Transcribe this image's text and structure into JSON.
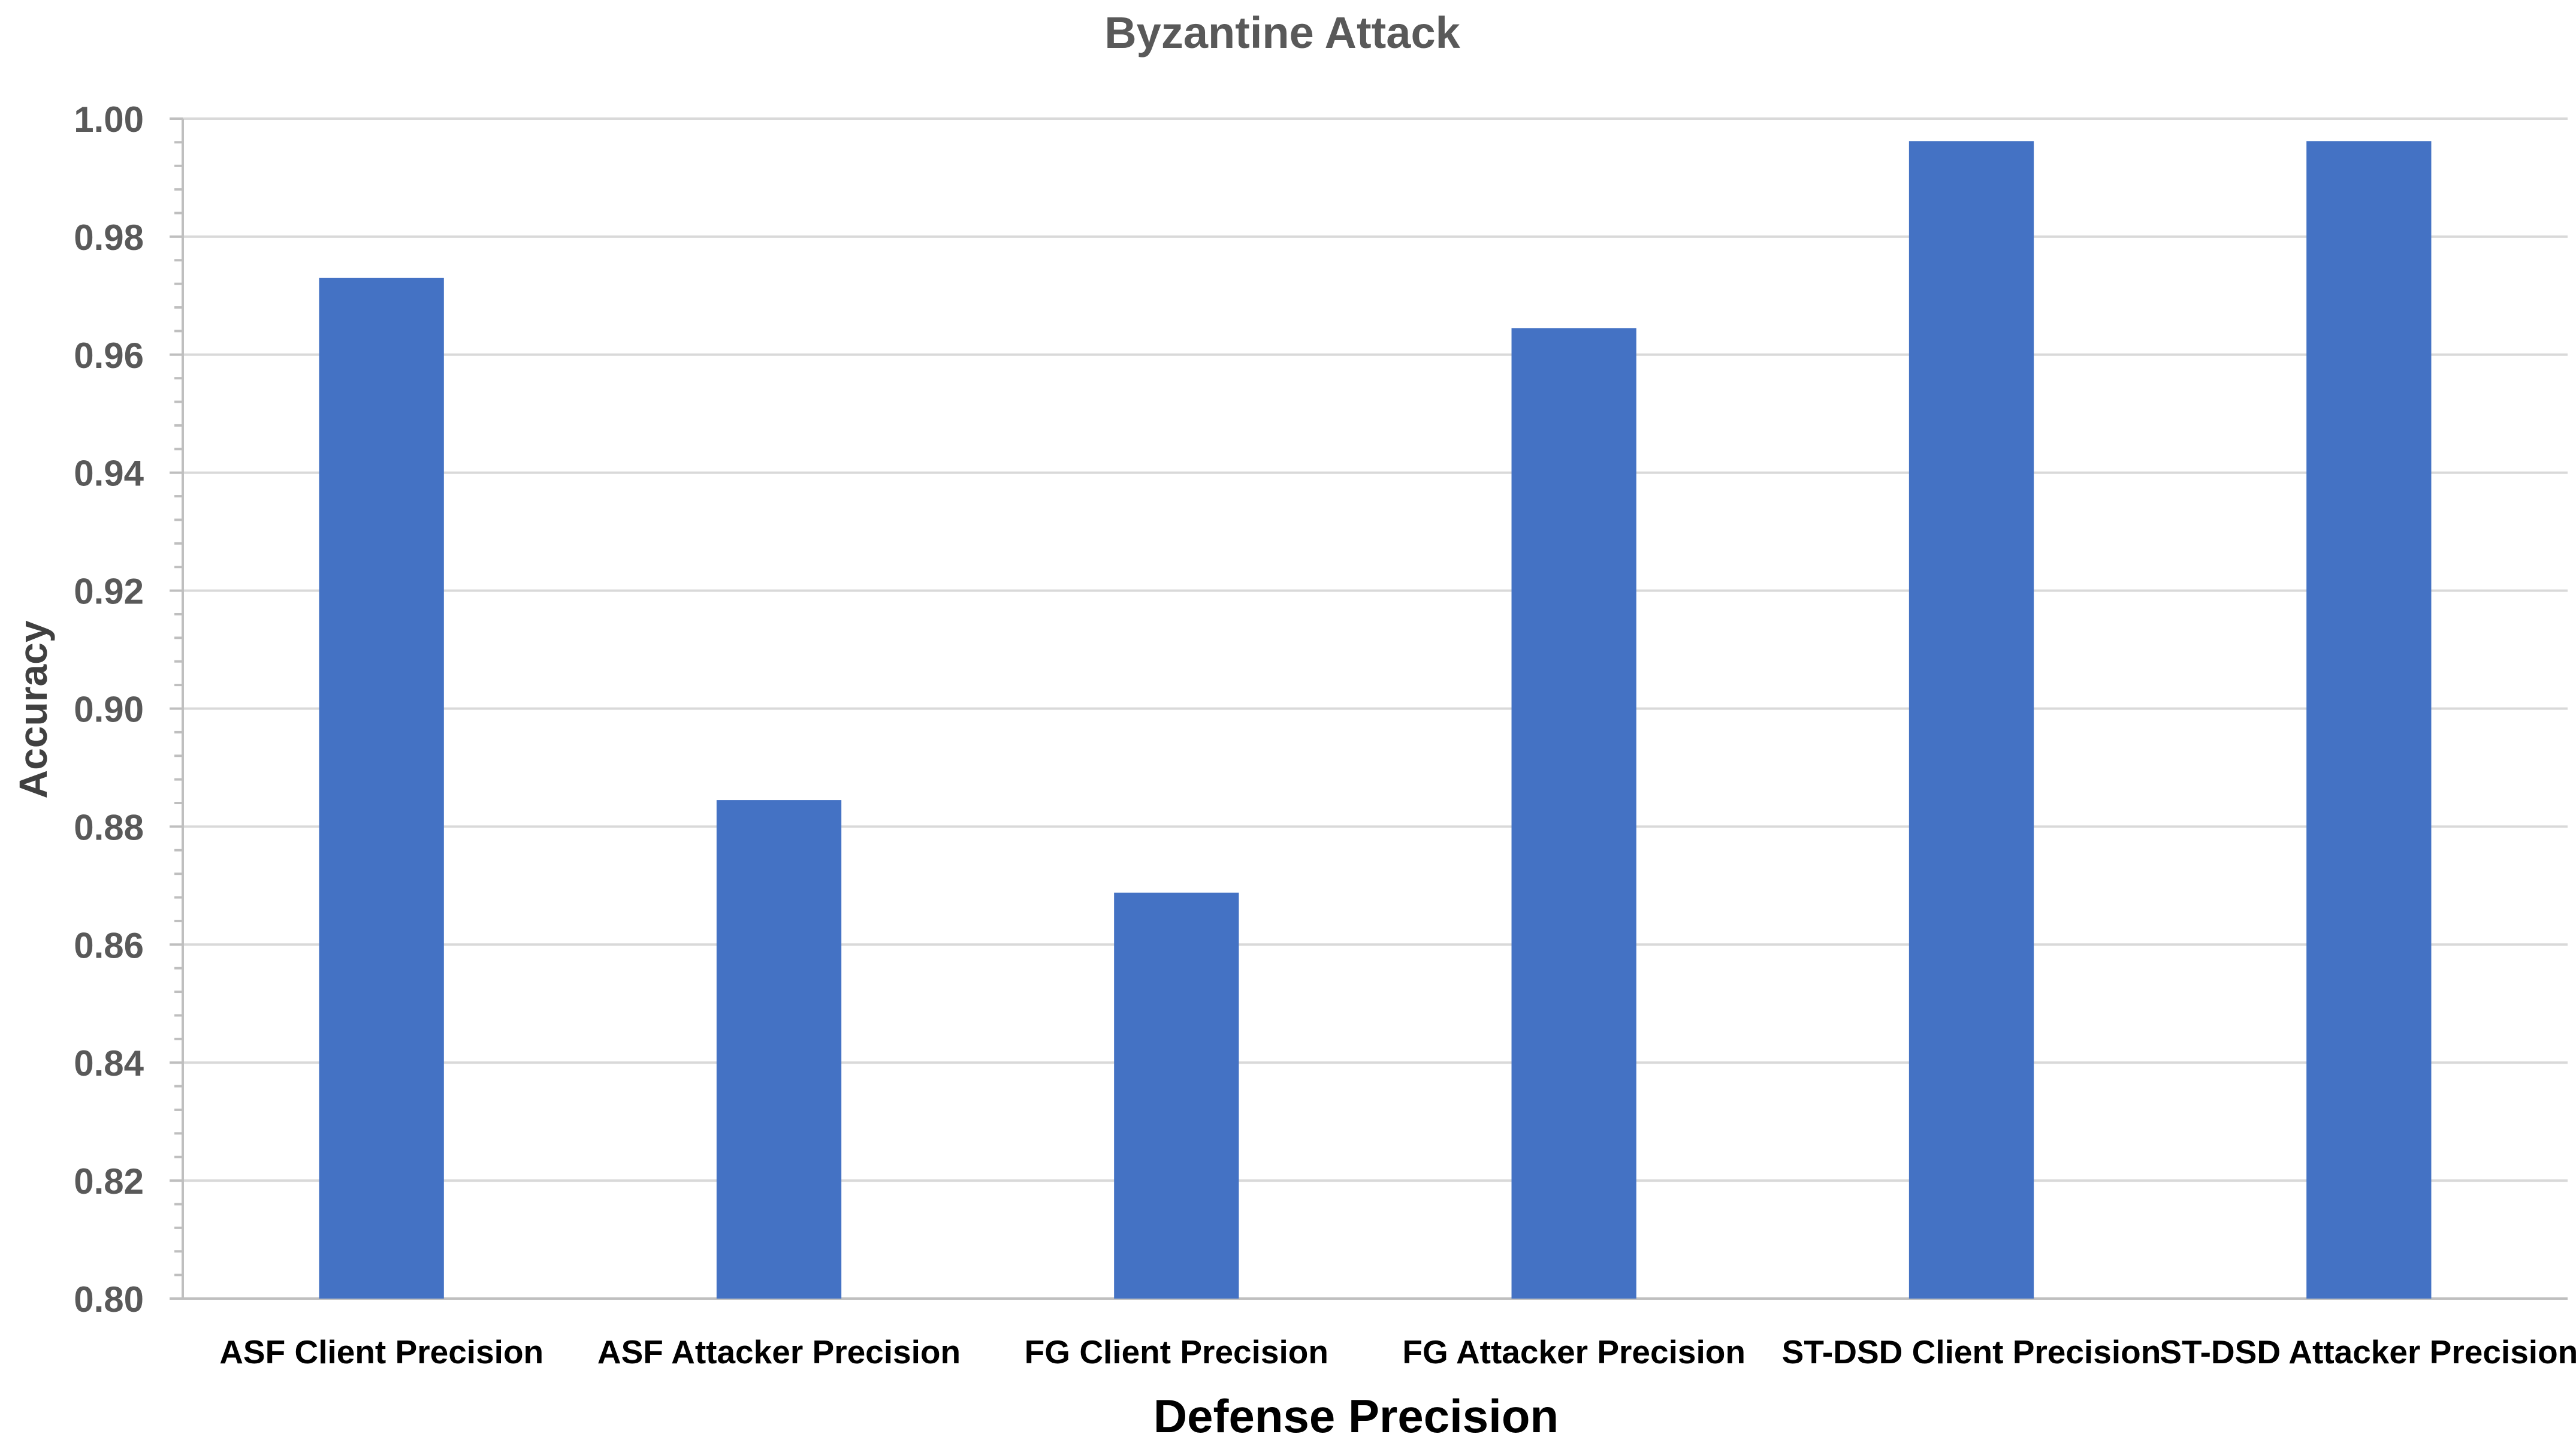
{
  "chart_data": {
    "type": "bar",
    "title": "Byzantine Attack",
    "xlabel": "Defense Precision",
    "ylabel": "Accuracy",
    "categories": [
      "ASF Client Precision",
      "ASF Attacker Precision",
      "FG Client Precision",
      "FG Attacker Precision",
      "ST-DSD Client Precision",
      "ST-DSD Attacker Precision"
    ],
    "values": [
      0.973,
      0.8845,
      0.8688,
      0.9645,
      0.9962,
      0.9962
    ],
    "ylim": [
      0.8,
      1.0
    ],
    "yticks": [
      "0.80",
      "0.82",
      "0.84",
      "0.86",
      "0.88",
      "0.90",
      "0.92",
      "0.94",
      "0.96",
      "0.98",
      "1.00"
    ],
    "grid": true,
    "legend": "none",
    "colors": {
      "bar": "#4472C4",
      "grid": "#D9D9D9",
      "axis": "#BFBFBF",
      "text": "#595959",
      "xlabel": "#000000",
      "ylabel": "#404040"
    }
  }
}
